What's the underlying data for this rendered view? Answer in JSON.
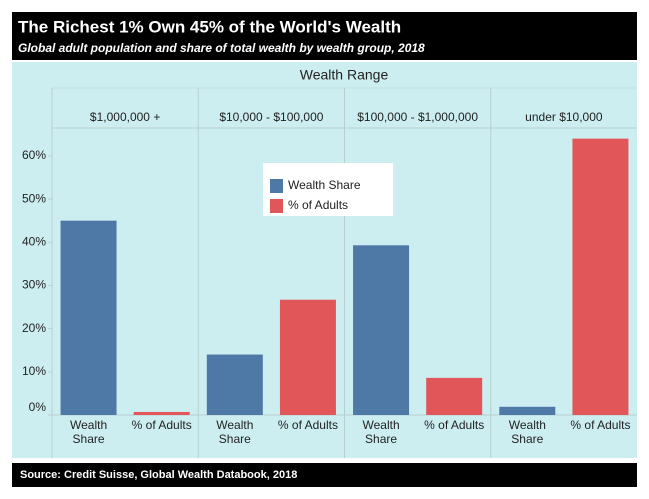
{
  "chart_data": {
    "type": "bar",
    "title": "The Richest 1% Own 45% of the World's Wealth",
    "subtitle": "Global adult population and share of total wealth by wealth group, 2018",
    "facet_title": "Wealth Range",
    "facets": [
      "$1,000,000 +",
      "$10,000 - $100,000",
      "$100,000 - $1,000,000",
      "under $10,000"
    ],
    "series": [
      {
        "name": "Wealth Share",
        "color": "#4e79a7",
        "values": [
          45,
          14,
          39.3,
          1.9
        ]
      },
      {
        "name": "% of Adults",
        "color": "#e15759",
        "values": [
          0.7,
          26.7,
          8.6,
          64
        ]
      }
    ],
    "ylim": [
      0,
      66
    ],
    "yticks": [
      {
        "value": 0,
        "label": "0%"
      },
      {
        "value": 10,
        "label": "10%"
      },
      {
        "value": 20,
        "label": "20%"
      },
      {
        "value": 30,
        "label": "30%"
      },
      {
        "value": 40,
        "label": "40%"
      },
      {
        "value": 50,
        "label": "50%"
      },
      {
        "value": 60,
        "label": "60%"
      }
    ],
    "legend": "top",
    "source": "Source: Credit Suisse, Global Wealth Databook, 2018"
  }
}
